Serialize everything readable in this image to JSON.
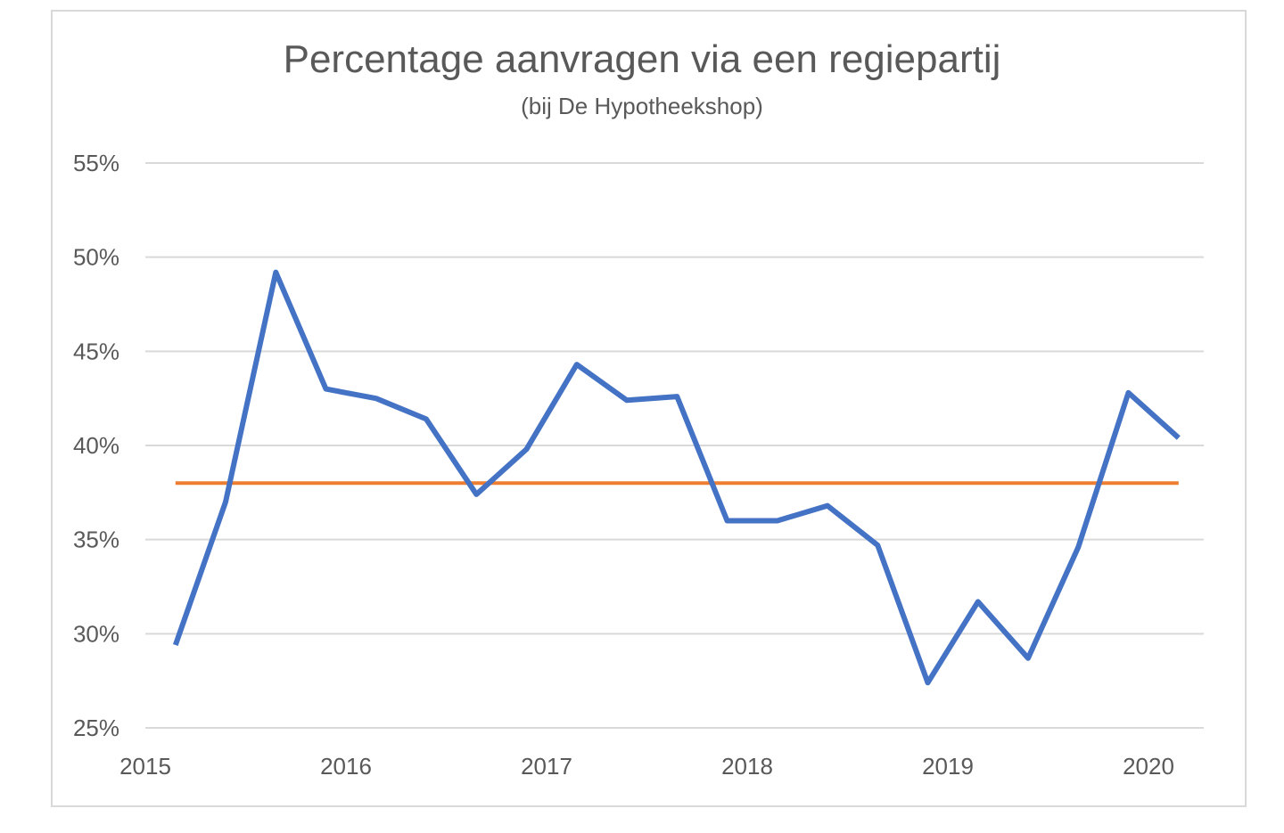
{
  "chart_data": {
    "type": "line",
    "title": "Percentage aanvragen via een regiepartij",
    "subtitle": "(bij De Hypotheekshop)",
    "xlabel": "",
    "ylabel": "",
    "y_ticks": [
      "55%",
      "50%",
      "45%",
      "40%",
      "35%",
      "30%",
      "25%"
    ],
    "y_tick_values": [
      55,
      50,
      45,
      40,
      35,
      30,
      25
    ],
    "ylim": [
      25,
      55
    ],
    "x_ticks": [
      "2015",
      "2016",
      "2017",
      "2018",
      "2019",
      "2020"
    ],
    "x_tick_values": [
      2015,
      2016,
      2017,
      2018,
      2019,
      2020
    ],
    "xlim": [
      2015,
      2020.25
    ],
    "grid": true,
    "legend": "none",
    "series": [
      {
        "color": "#4472c4",
        "x": [
          2015.15,
          2015.4,
          2015.65,
          2015.9,
          2016.15,
          2016.4,
          2016.65,
          2016.9,
          2017.15,
          2017.4,
          2017.65,
          2017.9,
          2018.15,
          2018.4,
          2018.65,
          2018.9,
          2019.15,
          2019.4,
          2019.65,
          2019.9,
          2020.15
        ],
        "values": [
          29.4,
          37.0,
          49.2,
          43.0,
          42.5,
          41.4,
          37.4,
          39.8,
          44.3,
          42.4,
          42.6,
          36.0,
          36.0,
          36.8,
          34.7,
          27.4,
          31.7,
          28.7,
          34.6,
          42.8,
          40.4
        ]
      },
      {
        "color": "#ed7d31",
        "x": [
          2015.15,
          2020.15
        ],
        "values": [
          38.0,
          38.0
        ]
      }
    ]
  }
}
